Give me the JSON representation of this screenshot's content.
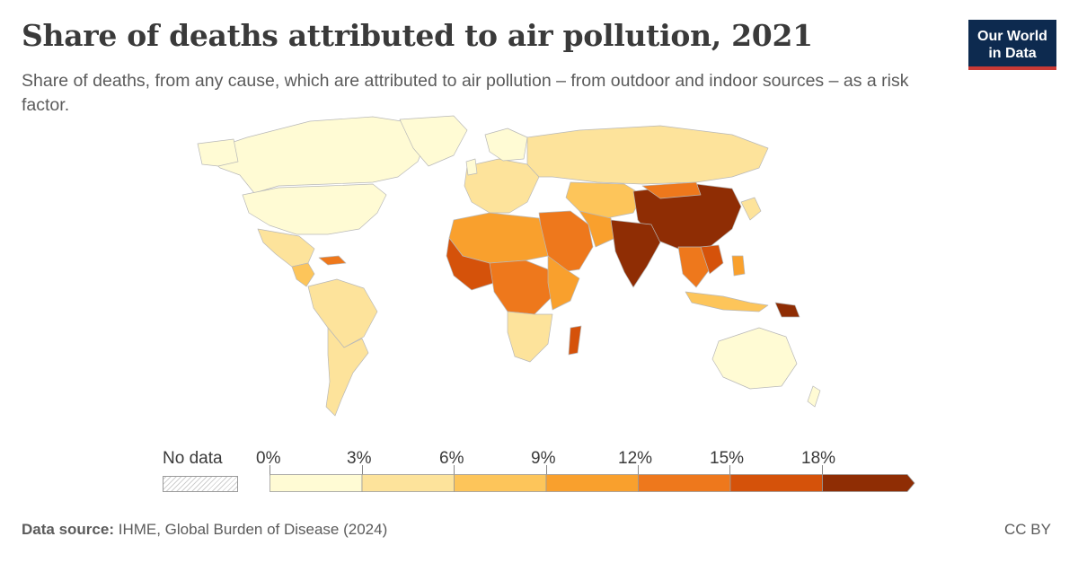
{
  "header": {
    "title": "Share of deaths attributed to air pollution, 2021",
    "subtitle": "Share of deaths, from any cause, which are attributed to air pollution – from outdoor and indoor sources – as a risk factor."
  },
  "logo": {
    "line1": "Our World",
    "line2": "in Data"
  },
  "legend": {
    "no_data_label": "No data",
    "ticks": [
      "0%",
      "3%",
      "6%",
      "9%",
      "12%",
      "15%",
      "18%"
    ],
    "bin_colors": [
      "#fffbd4",
      "#fde39b",
      "#fdc55a",
      "#f9a02d",
      "#ee781c",
      "#d5520a",
      "#8f2d04"
    ]
  },
  "map_colors": {
    "lowest": "#fffbd4",
    "low": "#fde39b",
    "mid": "#fdc55a",
    "midhigh": "#f9a02d",
    "high": "#ee781c",
    "veryhigh": "#d5520a",
    "highest": "#8f2d04",
    "border": "#b8b8b8"
  },
  "footer": {
    "source_label": "Data source:",
    "source_text": "IHME, Global Burden of Disease (2024)",
    "license": "CC BY"
  }
}
